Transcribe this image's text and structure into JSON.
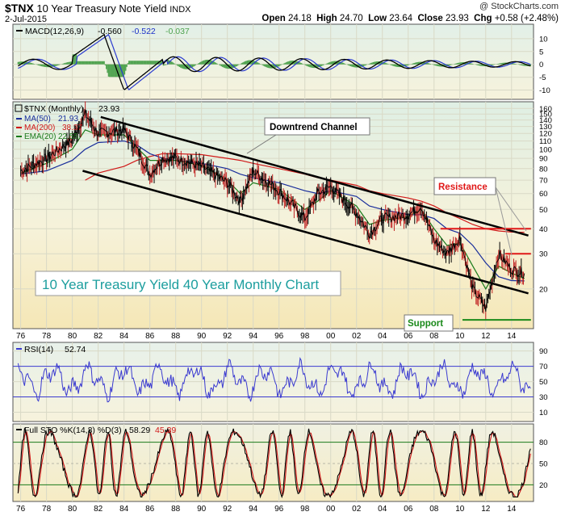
{
  "header": {
    "symbol": "$TNX",
    "name": "10 Year Treasury Note Yield",
    "exchange": "INDX",
    "date": "2-Jul-2015",
    "watermark": "@ StockCharts.com",
    "open_label": "Open",
    "open": "24.18",
    "high_label": "High",
    "high": "24.70",
    "low_label": "Low",
    "low": "23.64",
    "close_label": "Close",
    "close": "23.93",
    "chg_label": "Chg",
    "chg": "+0.58 (+2.48%)"
  },
  "colors": {
    "panel_bg": "#fbf5d7",
    "panel_bg_top": "#dff0e6",
    "grid": "#d8d8c8",
    "price": "#000000",
    "ma50": "#1a2e9b",
    "ma200": "#d01818",
    "ema20": "#1a7a1a",
    "rsi": "#3a3ad0",
    "sto_k": "#000000",
    "sto_d": "#d01818",
    "macd_hist": "#4ea24e",
    "annotation_red": "#e01818",
    "annotation_green": "#1a8a1a"
  },
  "x_labels": [
    "76",
    "78",
    "80",
    "82",
    "84",
    "86",
    "88",
    "90",
    "92",
    "94",
    "96",
    "98",
    "00",
    "02",
    "04",
    "06",
    "08",
    "10",
    "12",
    "14"
  ],
  "macd": {
    "label": "MACD(12,26,9)",
    "macd_value": "-0.560",
    "signal_value": "-0.522",
    "hist_value": "-0.037",
    "yticks": [
      "10",
      "5",
      "0",
      "-5",
      "-10"
    ],
    "ylim": [
      -13,
      15
    ]
  },
  "price": {
    "label": "$TNX (Monthly)",
    "label_value": "23.93",
    "legend": [
      {
        "name": "MA(50)",
        "value": "21.93",
        "color": "#1a2e9b"
      },
      {
        "name": "MA(200)",
        "value": "38.37",
        "color": "#d01818"
      },
      {
        "name": "EMA(20)",
        "value": "22.55",
        "color": "#1a7a1a"
      }
    ],
    "yticks": [
      "160",
      "150",
      "140",
      "130",
      "120",
      "110",
      "100",
      "90",
      "80",
      "70",
      "60",
      "50",
      "40",
      "30",
      "20"
    ],
    "scale": "log"
  },
  "annotations": {
    "title_box": "10 Year Treasury Yield 40 Year Monthly Chart",
    "downtrend": "Downtrend Channel",
    "resistance": "Resistance",
    "support": "Support"
  },
  "rsi": {
    "label": "RSI(14)",
    "value": "52.74",
    "yticks": [
      "90",
      "70",
      "50",
      "30",
      "10"
    ]
  },
  "sto": {
    "label": "Full STO %K(14,3) %D(3)",
    "k_value": "58.29",
    "d_value": "45.39",
    "yticks": [
      "80",
      "50",
      "20"
    ]
  },
  "chart_data": {
    "type": "line",
    "title": "10 Year Treasury Note Yield",
    "x": [
      1976,
      1978,
      1980,
      1981,
      1982,
      1984,
      1985,
      1986,
      1987,
      1988,
      1990,
      1992,
      1993,
      1994,
      1996,
      1998,
      1999,
      2000,
      2002,
      2003,
      2004,
      2006,
      2007,
      2008,
      2009,
      2010,
      2011,
      2012,
      2013,
      2014,
      2015
    ],
    "series": [
      {
        "name": "$TNX (Monthly)",
        "values": [
          78,
          90,
          112,
          150,
          120,
          125,
          100,
          75,
          90,
          90,
          82,
          68,
          55,
          78,
          62,
          45,
          60,
          65,
          48,
          38,
          45,
          47,
          52,
          35,
          30,
          36,
          20,
          16,
          30,
          25,
          23.93
        ]
      },
      {
        "name": "MA(50)",
        "values": [
          75,
          78,
          88,
          100,
          108,
          110,
          105,
          95,
          90,
          88,
          85,
          80,
          75,
          72,
          68,
          62,
          60,
          62,
          58,
          52,
          50,
          47,
          47,
          45,
          40,
          38,
          33,
          27,
          23,
          22,
          21.93
        ]
      },
      {
        "name": "MA(200)",
        "values": [
          null,
          null,
          null,
          70,
          76,
          82,
          88,
          92,
          95,
          95,
          94,
          90,
          88,
          85,
          80,
          75,
          72,
          70,
          66,
          62,
          60,
          57,
          55,
          52,
          48,
          45,
          42,
          40,
          39,
          38.5,
          38.37
        ]
      },
      {
        "name": "EMA(20)",
        "values": [
          76,
          85,
          100,
          125,
          118,
          118,
          102,
          88,
          88,
          88,
          83,
          70,
          60,
          68,
          63,
          50,
          55,
          62,
          52,
          42,
          44,
          46,
          50,
          40,
          33,
          34,
          26,
          20,
          26,
          24,
          22.55
        ]
      }
    ],
    "annotations": {
      "resistance_levels": [
        40,
        30
      ],
      "support_level": 14
    }
  }
}
